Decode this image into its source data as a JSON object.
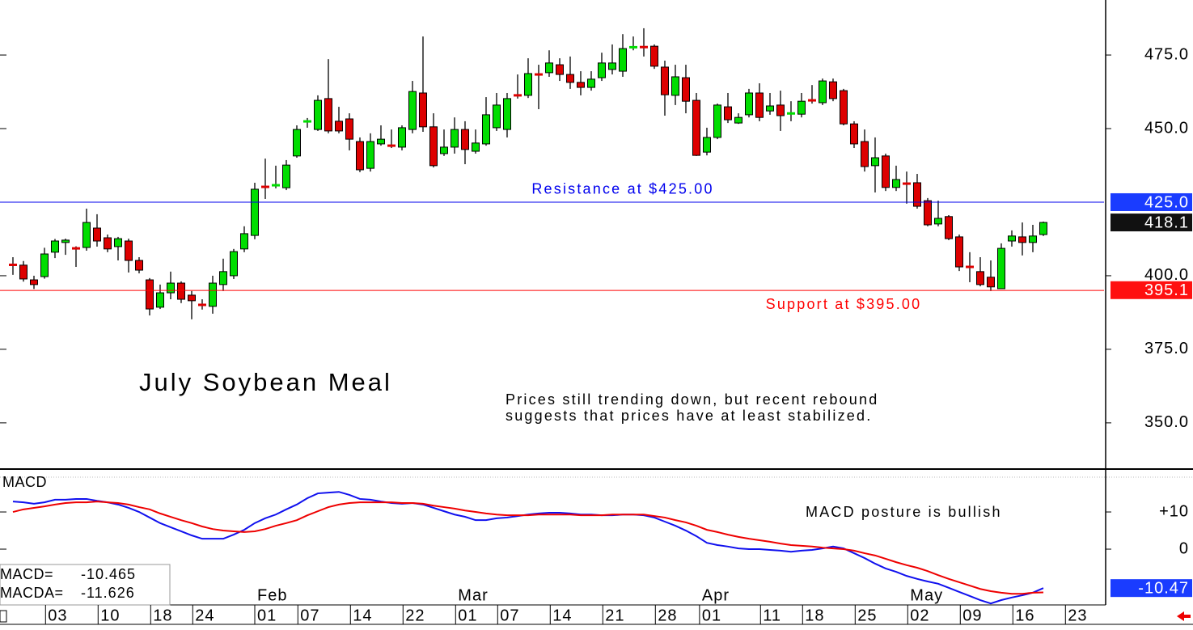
{
  "chart_data": [
    {
      "type": "candlestick",
      "title": "July Soybean Meal",
      "note": [
        "Prices still trending down, but recent rebound",
        "suggests that prices have at least stabilized."
      ],
      "open": [
        403.8,
        403.6,
        398.6,
        399.7,
        408,
        411.3,
        409.4,
        409.6,
        416.2,
        412.9,
        409.9,
        411.8,
        405.2,
        398.6,
        389.3,
        394.2,
        397.5,
        393.4,
        390.2,
        389.6,
        397,
        400,
        409.1,
        413.7,
        430.3,
        430.7,
        429.9,
        440.7,
        452.4,
        449.7,
        460.2,
        452.5,
        453.3,
        445.6,
        436.5,
        444.8,
        444.3,
        443.7,
        449.7,
        462.1,
        450.6,
        441.5,
        443.7,
        449.7,
        442.3,
        444.8,
        450.3,
        449.7,
        461.4,
        461.3,
        468.5,
        469,
        471.7,
        468.4,
        465.7,
        464,
        467.3,
        470.1,
        469.5,
        477.6,
        477.8,
        478,
        470.9,
        461.3,
        467.3,
        459.6,
        442,
        447,
        457.4,
        451.9,
        454.7,
        462.1,
        456,
        458,
        455.1,
        454.9,
        459.7,
        458.8,
        465.9,
        462.9,
        451.6,
        445.6,
        437.4,
        440.7,
        430,
        431.4,
        431.6,
        425.5,
        417.6,
        420.1,
        413.2,
        403.1,
        401.4,
        399.5,
        395.6,
        411.8,
        413.2,
        411.3,
        414
      ],
      "high": [
        406.3,
        405,
        400,
        409.5,
        412.5,
        412.6,
        410,
        422.8,
        420.9,
        414,
        413.2,
        412.6,
        406.3,
        399.2,
        397,
        401.4,
        398.1,
        394.8,
        392,
        400,
        405.8,
        409.1,
        416.8,
        431.6,
        439.8,
        437.4,
        439.3,
        451.1,
        453.6,
        461.3,
        473.6,
        457.4,
        455.2,
        447,
        448.4,
        451.1,
        449.7,
        451.1,
        466.2,
        481.3,
        455.2,
        449.7,
        453.8,
        452.5,
        449.7,
        460.7,
        462.1,
        462.1,
        468.4,
        473.9,
        471.7,
        476.6,
        473.9,
        474.5,
        469.5,
        469.5,
        475.8,
        478.6,
        482.1,
        481.3,
        484.1,
        478.6,
        473.1,
        471.7,
        471.7,
        462.1,
        450.3,
        458.5,
        462.1,
        455.2,
        463.5,
        465.4,
        462.1,
        462.9,
        459.3,
        462.1,
        464.8,
        467,
        467,
        463.5,
        452.5,
        449.7,
        447,
        441.5,
        437.4,
        435.4,
        434.6,
        426.4,
        425.5,
        420.6,
        414,
        408,
        406.3,
        405.2,
        411,
        415.4,
        418.1,
        417.3,
        418.4
      ],
      "low": [
        400.3,
        398,
        395.5,
        399,
        406,
        407.1,
        403,
        408.5,
        409.9,
        408,
        405.2,
        401.1,
        400.8,
        386.5,
        388.7,
        392,
        390.7,
        385.2,
        388.5,
        387.1,
        394.8,
        398.9,
        408,
        412.4,
        426.1,
        429.7,
        429.1,
        440.1,
        450.3,
        449.2,
        448.4,
        448.4,
        442.6,
        435.2,
        435.4,
        444.2,
        443.4,
        442.6,
        448.4,
        448.9,
        436.8,
        440.7,
        441.5,
        437.9,
        441.5,
        444.2,
        449.2,
        447,
        460.2,
        460.4,
        456.6,
        467.6,
        466.2,
        463.5,
        461.3,
        462.9,
        466.2,
        468.4,
        467.6,
        476.6,
        474.5,
        470.3,
        454.4,
        458,
        455.2,
        440.7,
        440.9,
        446.4,
        451.9,
        451.6,
        453.8,
        452.5,
        454.7,
        449.2,
        452.5,
        453.8,
        458.5,
        458,
        459.3,
        451.1,
        443.4,
        435.4,
        428.3,
        428.8,
        428.8,
        424.5,
        422.8,
        416.8,
        416.8,
        412.1,
        401.6,
        397.8,
        396.4,
        394.8,
        395.6,
        409.9,
        406.9,
        408,
        413.5
      ],
      "close": [
        403.6,
        398.9,
        397,
        407.4,
        411.8,
        412.1,
        409.2,
        418.1,
        411.8,
        409.1,
        412.6,
        405.2,
        401.9,
        388.7,
        394.2,
        397.5,
        392,
        391.5,
        390,
        397.5,
        401.4,
        408.2,
        414.3,
        429.4,
        430.1,
        430.8,
        437.6,
        449.7,
        452.5,
        459.6,
        449.2,
        449.2,
        446.4,
        436,
        445.6,
        446.4,
        444.1,
        450.3,
        462.6,
        450.6,
        437.4,
        443.7,
        449.7,
        442.9,
        445.1,
        454.7,
        458,
        460.2,
        461.2,
        468.7,
        468.3,
        472.3,
        468.4,
        465.7,
        464,
        466.8,
        472.3,
        472.3,
        477.2,
        477.7,
        477.6,
        471.2,
        461.5,
        467.6,
        459.3,
        440.9,
        447,
        458,
        453,
        453.8,
        462.1,
        453.8,
        457.7,
        454.4,
        455.2,
        459.3,
        459.5,
        466.2,
        460.2,
        451.6,
        444.8,
        437.1,
        440.1,
        430,
        432.7,
        431.2,
        423.6,
        417.3,
        419.5,
        412.6,
        403,
        402.9,
        397,
        396.2,
        409.3,
        413.5,
        411.3,
        413.5,
        418.1
      ],
      "up_color": "#00dd00",
      "down_color": "#dd0000",
      "ylim": [
        334.3,
        493.7
      ],
      "yticks": [
        {
          "value": 350,
          "label": "350.0"
        },
        {
          "value": 375,
          "label": "375.0"
        },
        {
          "value": 400,
          "label": "400.0"
        },
        {
          "value": 450,
          "label": "450.0"
        },
        {
          "value": 475,
          "label": "475.0"
        }
      ],
      "xlim": [
        -1.23,
        103.77
      ],
      "xticks": [
        {
          "value": 3.1,
          "label": "03"
        },
        {
          "value": 8.1,
          "label": "10"
        },
        {
          "value": 13.1,
          "label": "18"
        },
        {
          "value": 17.1,
          "label": "24"
        },
        {
          "value": 23,
          "label": "01"
        },
        {
          "value": 27.1,
          "label": "07"
        },
        {
          "value": 32.1,
          "label": "14"
        },
        {
          "value": 37.1,
          "label": "22"
        },
        {
          "value": 42.1,
          "label": "01"
        },
        {
          "value": 46.1,
          "label": "07"
        },
        {
          "value": 51.1,
          "label": "14"
        },
        {
          "value": 56.1,
          "label": "21"
        },
        {
          "value": 61.1,
          "label": "28"
        },
        {
          "value": 65.3,
          "label": "01"
        },
        {
          "value": 71.1,
          "label": "11"
        },
        {
          "value": 75.1,
          "label": "18"
        },
        {
          "value": 80.1,
          "label": "25"
        },
        {
          "value": 85.1,
          "label": "02"
        },
        {
          "value": 90.1,
          "label": "09"
        },
        {
          "value": 95.1,
          "label": "16"
        },
        {
          "value": 100.1,
          "label": "23"
        }
      ],
      "month_ticks": [
        {
          "value": 23,
          "label": "Feb"
        },
        {
          "value": 42.1,
          "label": "Mar"
        },
        {
          "value": 65.3,
          "label": "Apr"
        },
        {
          "value": 85.1,
          "label": "May"
        }
      ],
      "hlines": [
        {
          "value": 425,
          "color": "#0000ee",
          "label": "Resistance at $425.00"
        },
        {
          "value": 395,
          "color": "#ff0000",
          "label": "Support at $395.00"
        }
      ],
      "price_tags": [
        {
          "value": 425,
          "label": "425.0",
          "color": "#1a3cff"
        },
        {
          "value": 418.1,
          "label": "418.1",
          "color": "#111111"
        },
        {
          "value": 395.1,
          "label": "395.1",
          "color": "#ff1010"
        }
      ]
    },
    {
      "type": "line",
      "title": "MACD",
      "annotation": "MACD posture is bullish",
      "series": [
        {
          "name": "MACD=",
          "readout": "-10.465",
          "color": "#1010ee",
          "values": [
            12.8,
            12.6,
            12.2,
            12.6,
            13.3,
            13.3,
            13.5,
            13.5,
            13,
            12.6,
            12,
            11.1,
            10,
            8.5,
            7,
            5.9,
            4.8,
            3.7,
            2.8,
            2.8,
            2.8,
            3.9,
            5.2,
            7,
            8.3,
            9.3,
            10.7,
            12,
            13.7,
            15,
            15.2,
            15.4,
            14.6,
            13.5,
            13.3,
            12.8,
            12.4,
            12.2,
            12.4,
            12,
            11.1,
            10.2,
            9.3,
            8.7,
            7.8,
            7.8,
            8.3,
            8.5,
            8.9,
            9.3,
            9.6,
            9.8,
            9.8,
            9.6,
            9.3,
            9.3,
            9.1,
            9.1,
            9.3,
            9.3,
            9.1,
            8.5,
            7.4,
            6.3,
            5,
            3.5,
            1.7,
            1.1,
            0.7,
            0.2,
            0,
            0,
            -0.2,
            -0.4,
            -0.7,
            -0.4,
            -0.2,
            0.2,
            0.7,
            0.2,
            -1.1,
            -2.4,
            -3.9,
            -5.2,
            -6.1,
            -7.2,
            -8,
            -8.7,
            -9.3,
            -10.4,
            -11.5,
            -12.6,
            -13.7,
            -14.6,
            -13.7,
            -13,
            -12.4,
            -11.7,
            -10.465
          ]
        },
        {
          "name": "MACDA=",
          "readout": "-11.626",
          "color": "#ee0000",
          "values": [
            10,
            10.7,
            11.1,
            11.5,
            12,
            12.4,
            12.6,
            12.6,
            12.8,
            12.6,
            12.4,
            12,
            11.3,
            10.7,
            9.6,
            8.7,
            7.8,
            7,
            6.1,
            5.4,
            5,
            4.8,
            4.6,
            4.8,
            5.4,
            6.3,
            7,
            7.8,
            9.1,
            10.2,
            11.3,
            12,
            12.4,
            12.6,
            12.6,
            12.6,
            12.6,
            12.4,
            12.4,
            12.2,
            11.7,
            11.3,
            10.9,
            10.4,
            10,
            9.6,
            9.3,
            9.1,
            9.1,
            9.1,
            9.3,
            9.3,
            9.3,
            9.3,
            9.1,
            9.1,
            9.1,
            9.3,
            9.3,
            9.3,
            9.3,
            8.9,
            8.5,
            7.8,
            7.2,
            6.3,
            5.2,
            4.6,
            3.9,
            3.3,
            2.8,
            2.4,
            2,
            1.5,
            1.1,
            0.9,
            0.7,
            0.4,
            0.2,
            0,
            -0.4,
            -1.1,
            -1.7,
            -2.6,
            -3.5,
            -4.3,
            -5,
            -5.9,
            -7,
            -8,
            -8.9,
            -9.8,
            -10.7,
            -11.3,
            -11.7,
            -12,
            -12,
            -11.7,
            -11.626
          ]
        }
      ],
      "ylim": [
        -15,
        21.1
      ],
      "yticks": [
        {
          "value": 10,
          "label": "+10"
        },
        0
      ],
      "xlim": [
        -1.23,
        103.77
      ],
      "price_tags": [
        {
          "value": -10.47,
          "label": "-10.47",
          "color": "#1a3cff"
        }
      ]
    }
  ]
}
